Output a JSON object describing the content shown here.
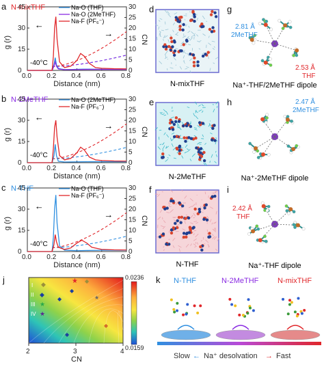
{
  "panels": {
    "a": {
      "letter": "a",
      "title": "N-mixTHF",
      "title_color": "#e0262a",
      "legend": [
        "Na-O (THF)",
        "Na-O (2MeTHF)",
        "Na-F (PF₆⁻)"
      ],
      "temp": "-40°C"
    },
    "b": {
      "letter": "b",
      "title": "N-2MeTHF",
      "title_color": "#8a2be2",
      "legend": [
        "Na-O (2MeTHF)",
        "Na-F (PF₆⁻)"
      ],
      "temp": "-40°C"
    },
    "c": {
      "letter": "c",
      "title": "N-THF",
      "title_color": "#2f8fe0",
      "legend": [
        "Na-O (THF)",
        "Na-F (PF₆⁻)"
      ],
      "temp": "-40°C"
    },
    "d": {
      "letter": "d",
      "caption": "N-mixTHF"
    },
    "e": {
      "letter": "e",
      "caption": "N-2MeTHF"
    },
    "f": {
      "letter": "f",
      "caption": "N-THF"
    },
    "g": {
      "letter": "g",
      "label1": "2.81 Å",
      "label1b": "2MeTHF",
      "label2": "2.53 Å",
      "label2b": "THF",
      "caption": "Na⁺-THF/2MeTHF dipole"
    },
    "h": {
      "letter": "h",
      "label1": "2.47 Å",
      "label1b": "2MeTHF",
      "caption": "Na⁺-2MeTHF dipole"
    },
    "i": {
      "letter": "i",
      "label1": "2.42 Å",
      "label1b": "THF",
      "caption": "Na⁺-THF dipole"
    },
    "j": {
      "letter": "j",
      "xlabel": "CN",
      "colorbar_max": "0.0236",
      "colorbar_min": "0.0159",
      "legend": [
        "I",
        "II",
        "III",
        "IV"
      ]
    },
    "k": {
      "letter": "k",
      "titles": [
        "N-THF",
        "N-2MeTHF",
        "N-mixTHF"
      ],
      "title_colors": [
        "#2f8fe0",
        "#8a2be2",
        "#e0262a"
      ],
      "slow": "Slow",
      "fast": "Fast",
      "mid": "Na⁺ desolvation"
    }
  },
  "rdf_axes": {
    "ylabel": "g (r)",
    "ylabel2": "CN",
    "xlabel": "Distance (nm)",
    "xticks": [
      "0.0",
      "0.2",
      "0.4",
      "0.6",
      "0.8"
    ],
    "yticks_left": [
      "0",
      "15",
      "30",
      "45"
    ],
    "yticks_right": [
      "0",
      "5",
      "10",
      "15",
      "20",
      "25",
      "30"
    ]
  },
  "heatmap_axes": {
    "xticks": [
      "2",
      "3",
      "4"
    ]
  },
  "chart_data": [
    {
      "type": "line",
      "panel": "a",
      "xlabel": "Distance (nm)",
      "ylabel": "g (r)",
      "ylabel2": "CN",
      "xlim": [
        0,
        0.8
      ],
      "ylim": [
        0,
        45
      ],
      "y2lim": [
        0,
        30
      ],
      "series": [
        {
          "name": "Na-O (THF)",
          "color": "#2f8fe0",
          "x": [
            0.0,
            0.2,
            0.215,
            0.225,
            0.235,
            0.25,
            0.27,
            0.3,
            0.35,
            0.4,
            0.45,
            0.5,
            0.6,
            0.7,
            0.8
          ],
          "y": [
            0,
            0,
            4,
            9,
            4,
            1.5,
            1,
            0.6,
            0.6,
            0.8,
            0.9,
            0.9,
            0.8,
            0.8,
            0.8
          ]
        },
        {
          "name": "Na-O (2MeTHF)",
          "color": "#8a2be2",
          "x": [
            0.0,
            0.2,
            0.215,
            0.225,
            0.235,
            0.25,
            0.3,
            0.4,
            0.5,
            0.6,
            0.7,
            0.8
          ],
          "y": [
            0,
            0,
            3,
            6,
            3,
            1,
            0.5,
            0.6,
            0.7,
            0.7,
            0.7,
            0.7
          ]
        },
        {
          "name": "Na-F (PF₆⁻)",
          "color": "#e0262a",
          "x": [
            0.0,
            0.2,
            0.21,
            0.22,
            0.23,
            0.24,
            0.26,
            0.3,
            0.35,
            0.4,
            0.43,
            0.46,
            0.5,
            0.55,
            0.6,
            0.7,
            0.8
          ],
          "y": [
            0,
            0,
            10,
            30,
            38,
            22,
            6,
            2,
            3,
            7,
            12,
            10,
            5,
            2,
            1.5,
            1.2,
            1.1
          ]
        }
      ]
    },
    {
      "type": "line",
      "panel": "b",
      "xlabel": "Distance (nm)",
      "ylabel": "g (r)",
      "ylabel2": "CN",
      "xlim": [
        0,
        0.8
      ],
      "ylim": [
        0,
        45
      ],
      "y2lim": [
        0,
        30
      ],
      "series": [
        {
          "name": "Na-O (2MeTHF)",
          "color": "#2f8fe0",
          "x": [
            0.0,
            0.2,
            0.215,
            0.225,
            0.235,
            0.25,
            0.3,
            0.4,
            0.5,
            0.6,
            0.7,
            0.8
          ],
          "y": [
            0,
            0,
            5,
            13,
            5,
            1,
            0.5,
            0.6,
            0.7,
            0.7,
            0.7,
            0.7
          ]
        },
        {
          "name": "Na-F (PF₆⁻)",
          "color": "#e0262a",
          "x": [
            0.0,
            0.2,
            0.21,
            0.22,
            0.23,
            0.24,
            0.26,
            0.3,
            0.35,
            0.4,
            0.43,
            0.46,
            0.5,
            0.55,
            0.6,
            0.7,
            0.8
          ],
          "y": [
            0,
            0,
            10,
            25,
            30,
            18,
            5,
            2,
            3,
            7,
            11,
            9,
            4,
            2,
            1.5,
            1.2,
            1.1
          ]
        }
      ]
    },
    {
      "type": "line",
      "panel": "c",
      "xlabel": "Distance (nm)",
      "ylabel": "g (r)",
      "ylabel2": "CN",
      "xlim": [
        0,
        0.8
      ],
      "ylim": [
        0,
        45
      ],
      "y2lim": [
        0,
        30
      ],
      "series": [
        {
          "name": "Na-O (THF)",
          "color": "#2f8fe0",
          "x": [
            0.0,
            0.2,
            0.21,
            0.22,
            0.23,
            0.24,
            0.26,
            0.3,
            0.4,
            0.5,
            0.6,
            0.7,
            0.8
          ],
          "y": [
            0,
            0,
            10,
            30,
            40,
            20,
            4,
            1,
            0.6,
            0.8,
            0.9,
            0.9,
            0.9
          ]
        },
        {
          "name": "Na-F (PF₆⁻)",
          "color": "#e0262a",
          "x": [
            0.0,
            0.2,
            0.215,
            0.225,
            0.235,
            0.25,
            0.3,
            0.35,
            0.4,
            0.44,
            0.48,
            0.52,
            0.6,
            0.7,
            0.8
          ],
          "y": [
            0,
            0,
            5,
            12,
            7,
            3,
            1.5,
            2.5,
            6,
            8,
            6,
            3,
            1.5,
            1.2,
            1.1
          ]
        }
      ]
    }
  ]
}
